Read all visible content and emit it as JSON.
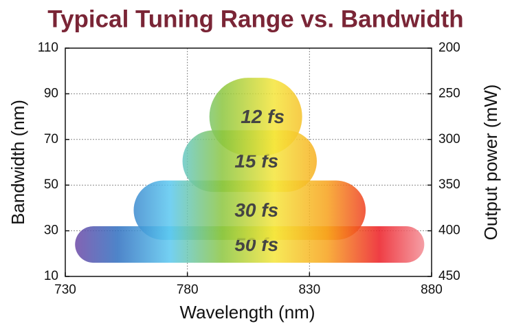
{
  "chart_data": {
    "type": "range-pill",
    "title": "Typical Tuning Range vs. Bandwidth",
    "x_label": "Wavelength (nm)",
    "y_label": "Bandwidth (nm)",
    "y2_label": "Output power (mW)",
    "xlim": [
      730,
      880
    ],
    "xticks": [
      730,
      780,
      830,
      880
    ],
    "ylim": [
      10,
      110
    ],
    "yticks": [
      10,
      30,
      50,
      70,
      90,
      110
    ],
    "y2lim": [
      450,
      200
    ],
    "y2ticks": [
      200,
      250,
      300,
      350,
      400,
      450
    ],
    "grid": true,
    "spectrum_colors": [
      "#7b3fa0",
      "#2f6fc0",
      "#5bc8f0",
      "#8cc63f",
      "#f5e53a",
      "#f7a21b",
      "#ec1c24",
      "#f4a0a8"
    ],
    "series": [
      {
        "name": "50 fs",
        "x": [
          734,
          877
        ],
        "values": [
          16,
          32
        ]
      },
      {
        "name": "30 fs",
        "x": [
          758,
          853
        ],
        "values": [
          26,
          52
        ]
      },
      {
        "name": "15 fs",
        "x": [
          778,
          833
        ],
        "values": [
          47,
          74
        ]
      },
      {
        "name": "12 fs",
        "x": [
          789,
          827
        ],
        "values": [
          63,
          97
        ]
      }
    ]
  }
}
